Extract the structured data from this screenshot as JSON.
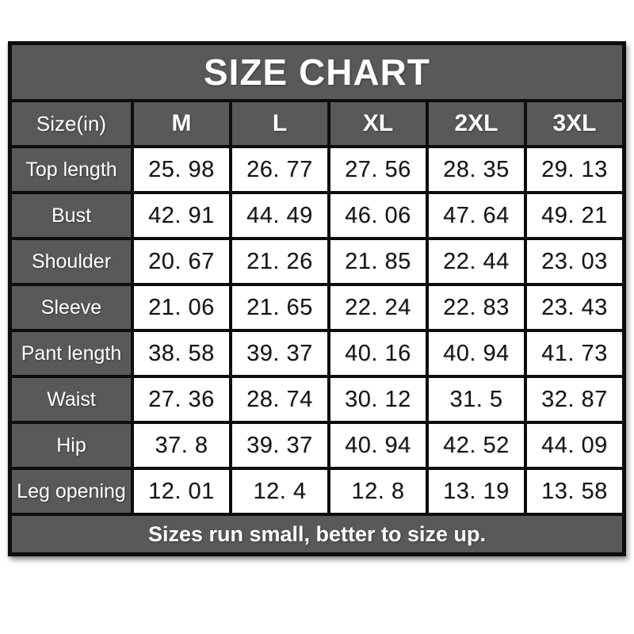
{
  "title": "SIZE CHART",
  "footer": "Sizes run small, better to size up.",
  "colors": {
    "header_bg": "#59595b",
    "border": "#0d0d0d",
    "value_cell_bg": "#ffffff",
    "header_text": "#ffffff",
    "value_text": "#141414"
  },
  "table": {
    "header": [
      "Size(in)",
      "M",
      "L",
      "XL",
      "2XL",
      "3XL"
    ],
    "rows": [
      {
        "label": "Top length",
        "values": [
          "25. 98",
          "26. 77",
          "27. 56",
          "28. 35",
          "29. 13"
        ]
      },
      {
        "label": "Bust",
        "values": [
          "42. 91",
          "44. 49",
          "46. 06",
          "47. 64",
          "49. 21"
        ]
      },
      {
        "label": "Shoulder",
        "values": [
          "20. 67",
          "21. 26",
          "21. 85",
          "22. 44",
          "23. 03"
        ]
      },
      {
        "label": "Sleeve",
        "values": [
          "21. 06",
          "21. 65",
          "22. 24",
          "22. 83",
          "23. 43"
        ]
      },
      {
        "label": "Pant length",
        "values": [
          "38. 58",
          "39. 37",
          "40. 16",
          "40. 94",
          "41. 73"
        ]
      },
      {
        "label": "Waist",
        "values": [
          "27. 36",
          "28. 74",
          "30. 12",
          "31. 5",
          "32. 87"
        ]
      },
      {
        "label": "Hip",
        "values": [
          "37. 8",
          "39. 37",
          "40. 94",
          "42. 52",
          "44. 09"
        ]
      },
      {
        "label": "Leg opening",
        "values": [
          "12. 01",
          "12. 4",
          "12. 8",
          "13. 19",
          "13. 58"
        ]
      }
    ]
  },
  "chart_data": {
    "type": "table",
    "title": "SIZE CHART",
    "unit": "inches",
    "columns": [
      "Size(in)",
      "M",
      "L",
      "XL",
      "2XL",
      "3XL"
    ],
    "rows": [
      [
        "Top length",
        25.98,
        26.77,
        27.56,
        28.35,
        29.13
      ],
      [
        "Bust",
        42.91,
        44.49,
        46.06,
        47.64,
        49.21
      ],
      [
        "Shoulder",
        20.67,
        21.26,
        21.85,
        22.44,
        23.03
      ],
      [
        "Sleeve",
        21.06,
        21.65,
        22.24,
        22.83,
        23.43
      ],
      [
        "Pant length",
        38.58,
        39.37,
        40.16,
        40.94,
        41.73
      ],
      [
        "Waist",
        27.36,
        28.74,
        30.12,
        31.5,
        32.87
      ],
      [
        "Hip",
        37.8,
        39.37,
        40.94,
        42.52,
        44.09
      ],
      [
        "Leg opening",
        12.01,
        12.4,
        12.8,
        13.19,
        13.58
      ]
    ],
    "annotation": "Sizes run small, better to size up."
  }
}
